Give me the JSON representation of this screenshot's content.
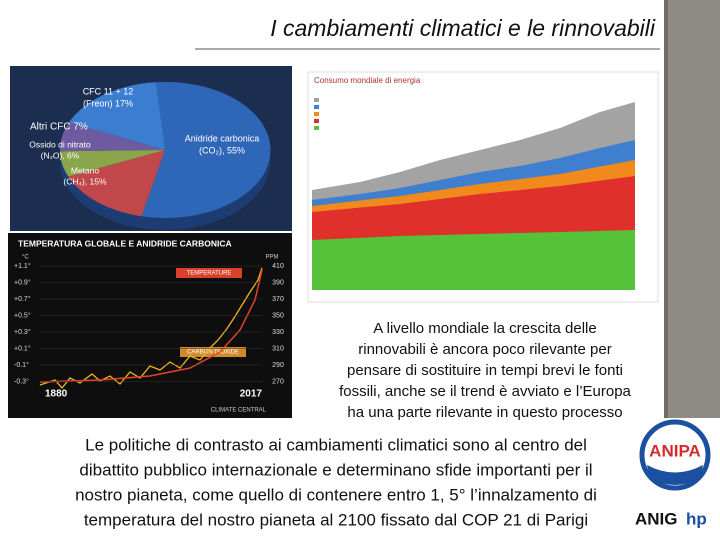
{
  "header": {
    "title": "I cambiamenti climatici e le rinnovabili"
  },
  "pie_image": {
    "labels": [
      "CFC 11 + 12",
      "(Freon) 17%",
      "Altri CFC  7%",
      "Ossido di nitrato",
      "(N₂O), 6%",
      "Metano",
      "(CH₄), 15%",
      "Anidride carbonica",
      "(CO₂), 55%"
    ]
  },
  "temperature_image": {
    "title": "TEMPERATURA GLOBALE E ANIDRIDE CARBONICA",
    "left_unit": "°C",
    "right_unit": "PPM",
    "left_ticks": [
      "+1.1°",
      "+0.9°",
      "+0.7°",
      "+0.5°",
      "+0.3°",
      "+0.1°",
      "-0.1°",
      "-0.3°"
    ],
    "right_ticks": [
      "410",
      "390",
      "370",
      "350",
      "330",
      "310",
      "290",
      "270"
    ],
    "start_year": "1880",
    "end_year": "2017",
    "series_labels": [
      "TEMPERATURE",
      "CARBON DIOXIDE"
    ],
    "source": "CLIMATE CENTRAL"
  },
  "energy_image": {
    "title": "Consumo mondiale di energia"
  },
  "side_text": [
    "A livello mondiale la crescita delle",
    "rinnovabili è ancora poco rilevante per",
    "pensare di sostituire in tempi brevi le fonti",
    "fossili, anche se il trend è avviato e l’Europa",
    "ha una parte rilevante in questo processo"
  ],
  "body_text": [
    "Le politiche di contrasto ai cambiamenti climatici sono al centro del",
    "dibattito pubblico internazionale e determinano sfide importanti per il",
    "nostro pianeta, come quello di contenere entro 1, 5° l’innalzamento di",
    "temperatura del nostro pianeta al 2100 fissato dal COP 21 di Parigi"
  ],
  "logo": {
    "name": "ANIPA",
    "brand": "ANIG",
    "brand_suffix": "hp"
  }
}
